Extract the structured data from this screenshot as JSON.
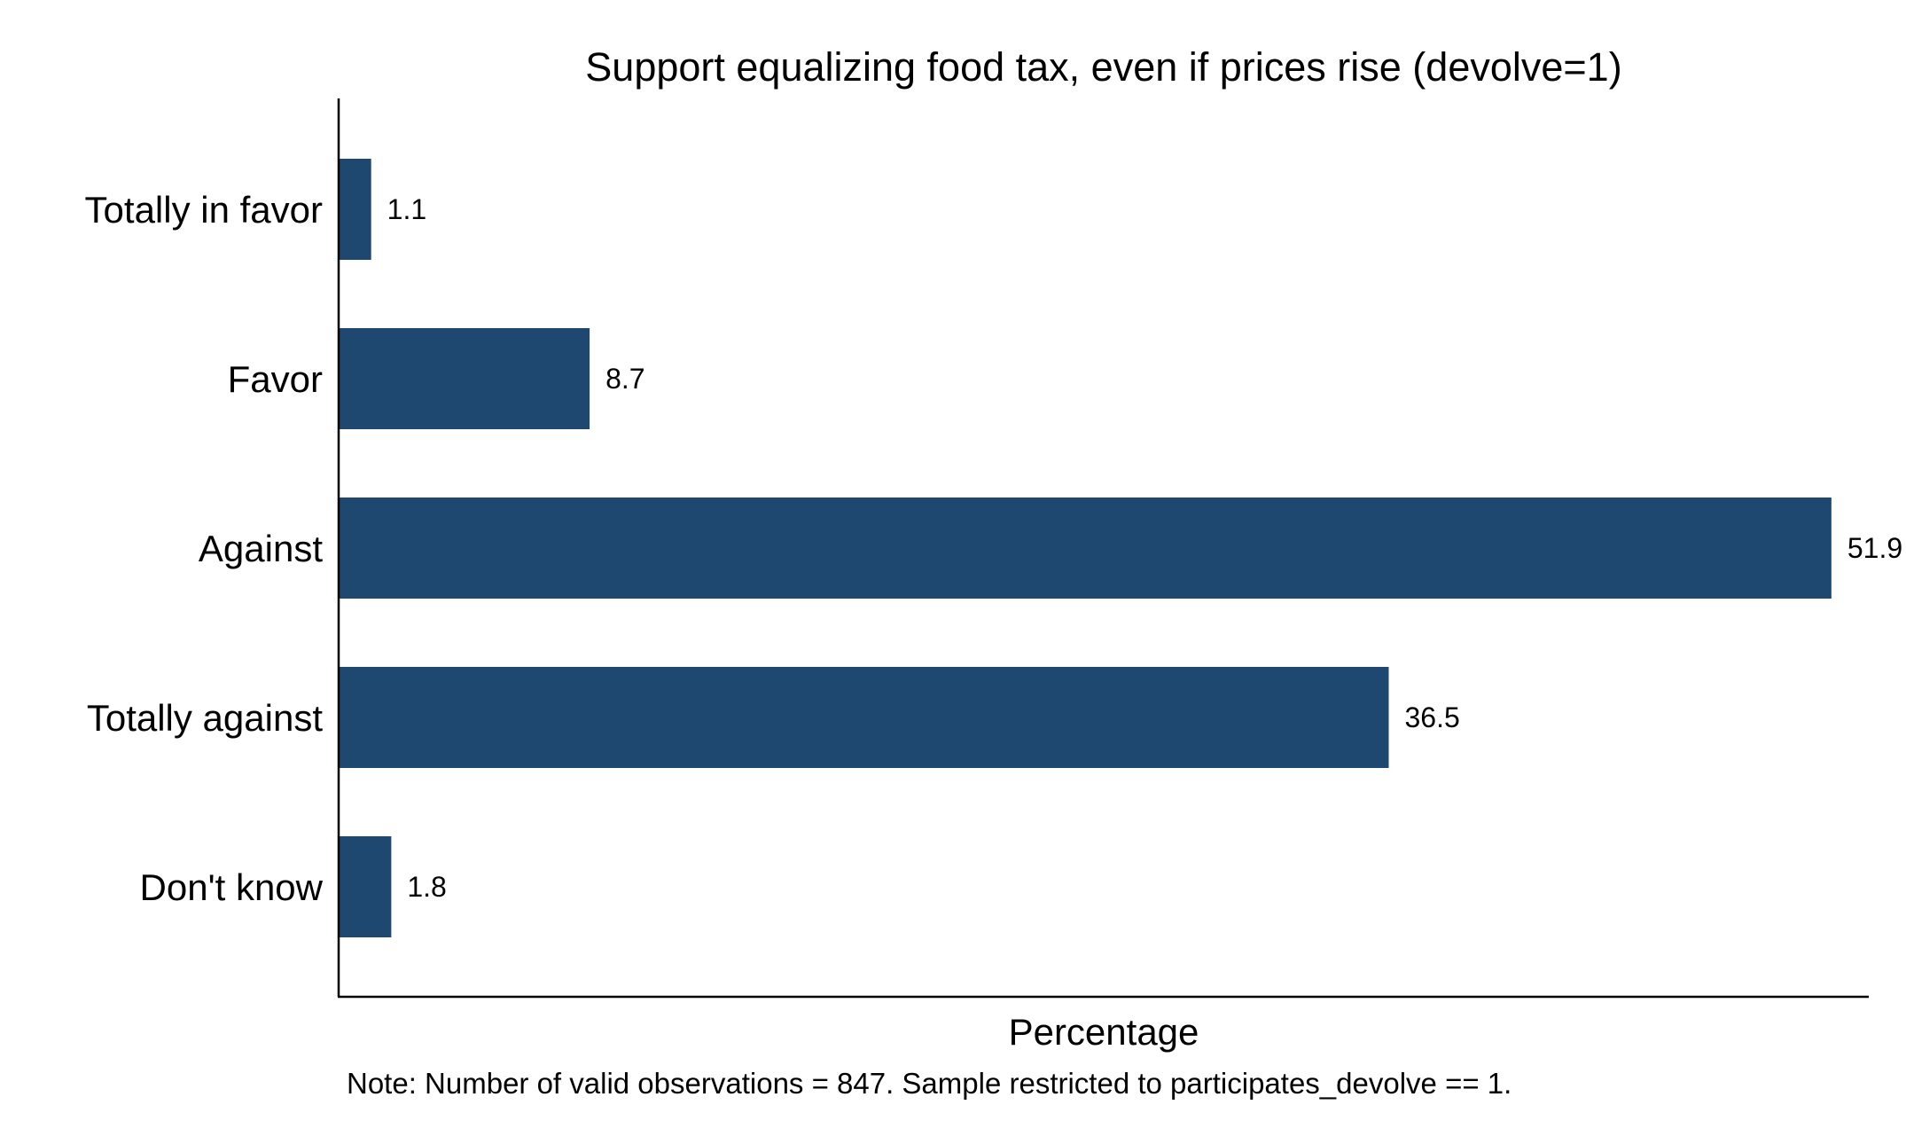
{
  "chart_data": {
    "type": "bar",
    "orientation": "horizontal",
    "title": "Support equalizing food tax, even if prices rise (devolve=1)",
    "categories": [
      "Totally in favor",
      "Favor",
      "Against",
      "Totally against",
      "Don't know"
    ],
    "values": [
      1.1,
      8.7,
      51.9,
      36.5,
      1.8
    ],
    "value_labels": [
      "1.1",
      "8.7",
      "51.9",
      "36.5",
      "1.8"
    ],
    "xlabel": "Percentage",
    "ylabel": "",
    "xlim": [
      0,
      53.2
    ],
    "grid": false,
    "legend": "none",
    "bar_color": "#1f4870",
    "note": "Note: Number of valid observations = 847. Sample restricted to participates_devolve == 1."
  }
}
